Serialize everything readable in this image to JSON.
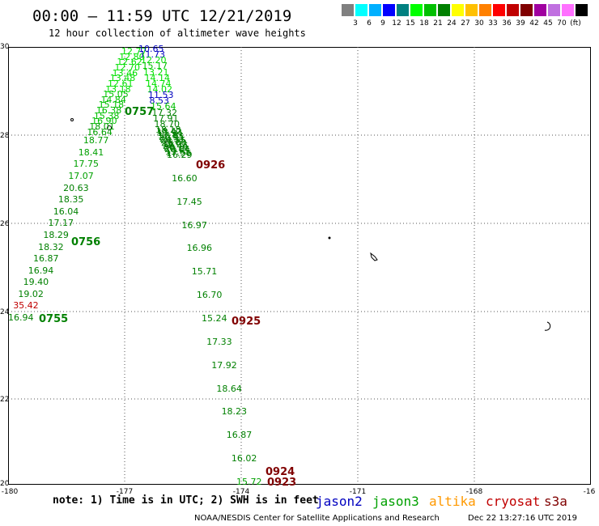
{
  "title": "00:00 – 11:59 UTC 12/21/2019",
  "subtitle": "12 hour collection of altimeter wave heights",
  "colorbar": {
    "colors": [
      "#808080",
      "#00ffff",
      "#00b0ff",
      "#0000ff",
      "#008080",
      "#00ff00",
      "#00c000",
      "#008000",
      "#ffff00",
      "#ffc000",
      "#ff8000",
      "#ff0000",
      "#c00000",
      "#800000",
      "#a000a0",
      "#c070e0",
      "#ff70ff",
      "#000000"
    ],
    "labels": [
      "3",
      "6",
      "9",
      "12",
      "15",
      "18",
      "21",
      "24",
      "27",
      "30",
      "33",
      "36",
      "39",
      "42",
      "45",
      "70",
      "(ft)"
    ]
  },
  "axes": {
    "lat_labels": [
      "30",
      "28",
      "26",
      "24",
      "22",
      "20"
    ],
    "lon_labels": [
      "-180",
      "-177",
      "-174",
      "-171",
      "-168",
      "-16"
    ]
  },
  "tracks": [
    {
      "values": [
        "12.77",
        "12.80",
        "12.62",
        "12.70",
        "13.46",
        "13.48",
        "12.61",
        "13.18",
        "15.05",
        "14.84",
        "15.18",
        "16.38",
        "15.38",
        "16.90",
        "18.01",
        "16.64",
        "18.77",
        "18.41",
        "17.75",
        "17.07",
        "20.63",
        "18.35",
        "16.04",
        "17.17",
        "18.29",
        "18.32",
        "16.87",
        "16.94",
        "19.40",
        "19.02",
        "35.42",
        "16.94"
      ],
      "colors": [
        "#00e000",
        "#00e000",
        "#00e000",
        "#00e000",
        "#00e000",
        "#00e000",
        "#00e000",
        "#00e000",
        "#00c000",
        "#00c000",
        "#00c000",
        "#00c000",
        "#00c000",
        "#00c000",
        "#00a000",
        "#00a000",
        "#00a000",
        "#00a000",
        "#00a000",
        "#00a000",
        "#008000",
        "#008000",
        "#008000",
        "#008000",
        "#008000",
        "#008000",
        "#008000",
        "#008000",
        "#008000",
        "#008000",
        "#c00000",
        "#008000"
      ]
    },
    {
      "values": [
        "10.65",
        "11.73",
        "12.20",
        "15.17",
        "13.21",
        "14.14",
        "14.74",
        "14.02",
        "11.53",
        "8.53",
        "15.64",
        "17.32",
        "17.91",
        "18.70",
        "18.18",
        "18.42",
        "17.94",
        "17.83",
        "20.95",
        "20.51",
        "20.55",
        "21.00",
        "19.92",
        "20.46",
        "20.11",
        "20.04",
        "19.65",
        "17.56",
        "16.29",
        "16.60",
        "17.45",
        "16.97",
        "16.96",
        "15.71",
        "16.70",
        "15.24",
        "17.33",
        "17.92",
        "18.64",
        "18.23",
        "16.87",
        "16.02",
        "15.72"
      ],
      "colors": [
        "#0000c0",
        "#0000c0",
        "#00e000",
        "#00c000",
        "#00e000",
        "#00e000",
        "#00e000",
        "#00e000",
        "#0000c0",
        "#0000c0",
        "#00c000",
        "#008000",
        "#008000",
        "#008000",
        "#008000",
        "#008000",
        "#008000",
        "#008000",
        "#008000",
        "#008000",
        "#008000",
        "#008000",
        "#008000",
        "#008000",
        "#008000",
        "#008000",
        "#008000",
        "#008000",
        "#008000",
        "#008000",
        "#008000",
        "#008000",
        "#008000",
        "#008000",
        "#008000",
        "#008000",
        "#008000",
        "#008000",
        "#008000",
        "#008000",
        "#008000",
        "#008000",
        "#00a000"
      ]
    }
  ],
  "pass_labels": [
    "0757",
    "0756",
    "0755",
    "0926",
    "0925",
    "0924",
    "0923"
  ],
  "footer": {
    "note": "note: 1) Time is in UTC; 2) SWH is in feet",
    "satellites": [
      {
        "name": "jason2",
        "color": "#0000c0"
      },
      {
        "name": "jason3",
        "color": "#00a000"
      },
      {
        "name": "altika",
        "color": "#ff9900"
      },
      {
        "name": "cryosat",
        "color": "#c00000"
      },
      {
        "name": "s3a",
        "color": "#800000"
      }
    ],
    "credit": "NOAA/NESDIS Center for Satellite Applications and Research",
    "timestamp": "Dec 22 13:27:16 UTC 2019"
  }
}
